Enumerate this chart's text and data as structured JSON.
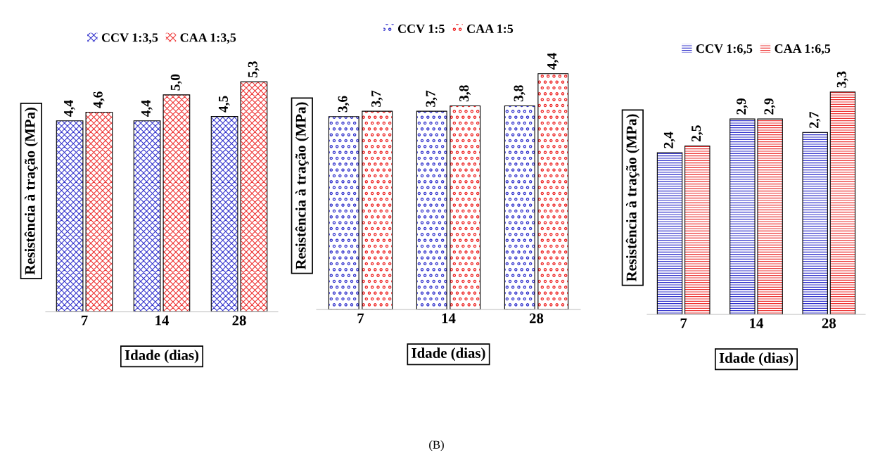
{
  "chart_data": [
    {
      "type": "bar",
      "categories": [
        "7",
        "14",
        "28"
      ],
      "ylabel": "Resistência à tração (MPa)",
      "xlabel": "Idade (dias)",
      "tick_labels": "x",
      "legend": "top",
      "series": [
        {
          "name": "CCV 1:3,5",
          "color": "#3333cc",
          "values": [
            4.4,
            4.4,
            4.5
          ],
          "value_labels": [
            "4,4",
            "4,4",
            "4,5"
          ]
        },
        {
          "name": "CAA 1:3,5",
          "color": "#ee3333",
          "values": [
            4.6,
            5.0,
            5.3
          ],
          "value_labels": [
            "4,6",
            "5,0",
            "5,3"
          ]
        }
      ]
    },
    {
      "type": "bar",
      "categories": [
        "7",
        "14",
        "28"
      ],
      "ylabel": "Resistência à tração (MPa)",
      "xlabel": "Idade (dias)",
      "tick_labels": "x",
      "legend": "top",
      "series": [
        {
          "name": "CCV 1:5",
          "color": "#3333cc",
          "values": [
            3.6,
            3.7,
            3.8
          ],
          "value_labels": [
            "3,6",
            "3,7",
            "3,8"
          ]
        },
        {
          "name": "CAA 1:5",
          "color": "#ee2222",
          "values": [
            3.7,
            3.8,
            4.4
          ],
          "value_labels": [
            "3,7",
            "3,8",
            "4,4"
          ]
        }
      ]
    },
    {
      "type": "bar",
      "categories": [
        "7",
        "14",
        "28"
      ],
      "ylabel": "Resistência à tração (MPa)",
      "xlabel": "Idade (dias)",
      "tick_labels": "x",
      "legend": "top",
      "annotations": [
        "(B)"
      ],
      "series": [
        {
          "name": "CCV 1:6,5",
          "color": "#3333cc",
          "values": [
            2.4,
            2.9,
            2.7
          ],
          "value_labels": [
            "2,4",
            "2,9",
            "2,7"
          ]
        },
        {
          "name": "CAA 1:6,5",
          "color": "#ee3333",
          "values": [
            2.5,
            2.9,
            3.3
          ],
          "value_labels": [
            "2,5",
            "2,9",
            "3,3"
          ]
        }
      ]
    }
  ]
}
